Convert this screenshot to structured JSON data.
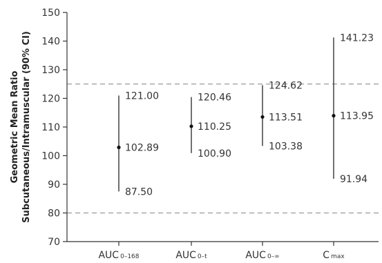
{
  "chart_data": {
    "type": "scatter",
    "title": "",
    "ylabel_lines": [
      "Geometric Mean Ratio",
      "Subcutaneous/Intramuscular (90% CI)"
    ],
    "ylim": [
      70,
      150
    ],
    "yticks": [
      "70",
      "80",
      "90",
      "100",
      "110",
      "120",
      "130",
      "140",
      "150"
    ],
    "reference_lines": [
      80,
      125
    ],
    "categories": [
      {
        "base": "AUC",
        "sub": "0–168"
      },
      {
        "base": "AUC",
        "sub": "0–t"
      },
      {
        "base": "AUC",
        "sub": "0–∞"
      },
      {
        "base": "C",
        "sub": "max"
      }
    ],
    "points": [
      {
        "mean": 102.89,
        "lower": 87.5,
        "upper": 121.0,
        "mean_label": "102.89",
        "lower_label": "87.50",
        "upper_label": "121.00"
      },
      {
        "mean": 110.25,
        "lower": 100.9,
        "upper": 120.46,
        "mean_label": "110.25",
        "lower_label": "100.90",
        "upper_label": "120.46"
      },
      {
        "mean": 113.51,
        "lower": 103.38,
        "upper": 124.62,
        "mean_label": "113.51",
        "lower_label": "103.38",
        "upper_label": "124.62"
      },
      {
        "mean": 113.95,
        "lower": 91.94,
        "upper": 141.23,
        "mean_label": "113.95",
        "lower_label": "91.94",
        "upper_label": "141.23"
      }
    ],
    "grid": false,
    "colors": {
      "axis": "#333333",
      "refline": "#9a9a9a",
      "whisker": "#111111",
      "point": "#111111"
    }
  }
}
